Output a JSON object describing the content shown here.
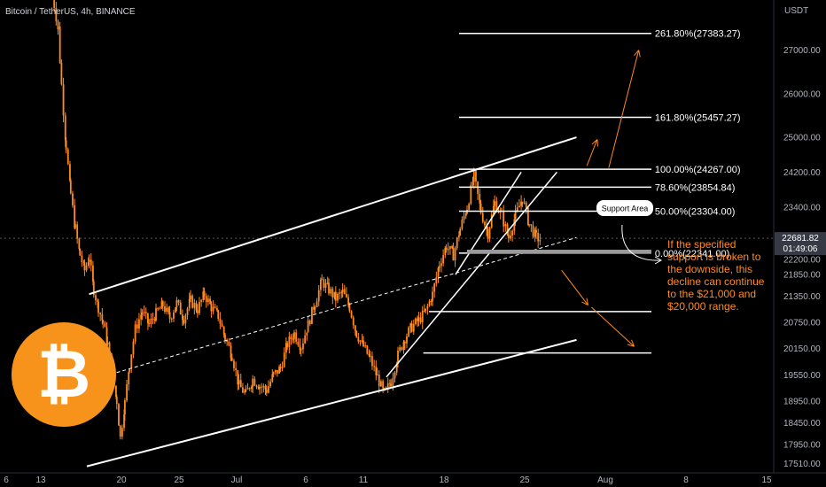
{
  "header": {
    "title": "Bitcoin / TetherUS, 4h, BINANCE"
  },
  "colors": {
    "background": "#000000",
    "candle": "#ff8a1f",
    "lines": "#ffffff",
    "annotation": "#ff8a1f",
    "bitcoin_logo": "#f7931a",
    "price_tag": "#363a45"
  },
  "chart_data": {
    "type": "candlestick",
    "symbol": "Bitcoin / TetherUS",
    "interval": "4h",
    "exchange": "BINANCE",
    "currency_label": "USDT",
    "ylim": [
      17300,
      28150
    ],
    "price_ticks": [
      27000,
      26000,
      25000,
      24200,
      23400,
      22200,
      21850,
      21350,
      20750,
      20150,
      19550,
      18950,
      18450,
      17950,
      17510
    ],
    "price_tick_labels": [
      "27000.00",
      "26000.00",
      "25000.00",
      "24200.00",
      "23400.00",
      "22200.00",
      "21850.00",
      "21350.00",
      "20750.00",
      "20150.00",
      "19550.00",
      "18950.00",
      "18450.00",
      "17950.00",
      "17510.00"
    ],
    "time_labels": [
      {
        "day": 10,
        "label": "6"
      },
      {
        "day": 13,
        "label": "13"
      },
      {
        "day": 20,
        "label": "20"
      },
      {
        "day": 25,
        "label": "25"
      },
      {
        "day": 30,
        "label": "Jul"
      },
      {
        "day": 36,
        "label": "6"
      },
      {
        "day": 41,
        "label": "11"
      },
      {
        "day": 48,
        "label": "18"
      },
      {
        "day": 55,
        "label": "25"
      },
      {
        "day": 62,
        "label": "Aug"
      },
      {
        "day": 69,
        "label": "8"
      },
      {
        "day": 76,
        "label": "15"
      }
    ],
    "current_price": "22681.82",
    "countdown": "01:49:06",
    "price_path": [
      [
        14.0,
        28300
      ],
      [
        14.5,
        27500
      ],
      [
        14.8,
        26200
      ],
      [
        15.2,
        24800
      ],
      [
        15.6,
        23700
      ],
      [
        16.0,
        22900
      ],
      [
        16.4,
        22300
      ],
      [
        16.8,
        21950
      ],
      [
        17.2,
        22250
      ],
      [
        17.6,
        21500
      ],
      [
        18.0,
        21100
      ],
      [
        18.4,
        20750
      ],
      [
        18.8,
        20250
      ],
      [
        19.2,
        19550
      ],
      [
        19.6,
        18950
      ],
      [
        19.9,
        18100
      ],
      [
        20.3,
        18900
      ],
      [
        20.7,
        19800
      ],
      [
        21.2,
        20600
      ],
      [
        21.8,
        21000
      ],
      [
        22.4,
        20700
      ],
      [
        23.0,
        20950
      ],
      [
        23.6,
        21150
      ],
      [
        24.2,
        20850
      ],
      [
        24.8,
        21200
      ],
      [
        25.4,
        20850
      ],
      [
        26.0,
        21250
      ],
      [
        26.6,
        21050
      ],
      [
        27.2,
        21400
      ],
      [
        27.8,
        21100
      ],
      [
        28.4,
        20900
      ],
      [
        29.0,
        20400
      ],
      [
        29.6,
        20000
      ],
      [
        30.2,
        19300
      ],
      [
        30.8,
        19100
      ],
      [
        31.4,
        19450
      ],
      [
        32.0,
        19300
      ],
      [
        32.6,
        19200
      ],
      [
        33.2,
        19550
      ],
      [
        33.8,
        19700
      ],
      [
        34.4,
        20250
      ],
      [
        35.0,
        20500
      ],
      [
        35.6,
        20200
      ],
      [
        36.2,
        20700
      ],
      [
        36.8,
        21200
      ],
      [
        37.4,
        21700
      ],
      [
        38.0,
        21500
      ],
      [
        38.6,
        21300
      ],
      [
        39.2,
        21450
      ],
      [
        39.8,
        21100
      ],
      [
        40.4,
        20500
      ],
      [
        41.0,
        20200
      ],
      [
        41.6,
        19900
      ],
      [
        42.2,
        19500
      ],
      [
        42.8,
        19100
      ],
      [
        43.4,
        19400
      ],
      [
        44.0,
        20000
      ],
      [
        44.6,
        20400
      ],
      [
        45.2,
        20650
      ],
      [
        45.8,
        20800
      ],
      [
        46.4,
        21000
      ],
      [
        47.0,
        21400
      ],
      [
        47.6,
        22100
      ],
      [
        48.2,
        22500
      ],
      [
        48.8,
        22300
      ],
      [
        49.4,
        22900
      ],
      [
        50.0,
        23400
      ],
      [
        50.6,
        24100
      ],
      [
        51.2,
        23300
      ],
      [
        51.8,
        22800
      ],
      [
        52.4,
        23500
      ],
      [
        53.0,
        23200
      ],
      [
        53.6,
        22700
      ],
      [
        54.2,
        23200
      ],
      [
        54.8,
        23600
      ],
      [
        55.4,
        23000
      ],
      [
        56.0,
        22700
      ],
      [
        56.4,
        22650
      ]
    ],
    "channel": {
      "upper": [
        [
          17.2,
          21400
        ],
        [
          59.5,
          25000
        ]
      ],
      "lower": [
        [
          17.0,
          17450
        ],
        [
          59.5,
          20350
        ]
      ],
      "midline_dashed": [
        [
          17.0,
          19400
        ],
        [
          59.5,
          22700
        ]
      ],
      "inner_lines": [
        [
          [
            43.0,
            19500
          ],
          [
            57.8,
            24200
          ]
        ],
        [
          [
            49.0,
            21850
          ],
          [
            54.7,
            24200
          ]
        ]
      ]
    },
    "fibonacci": {
      "x_start": 49.3,
      "x_end": 66.0,
      "label_x": 66.3,
      "levels": [
        {
          "label": "261.80%(27383.27)",
          "price": 27383.27
        },
        {
          "label": "161.80%(25457.27)",
          "price": 25457.27
        },
        {
          "label": "100.00%(24267.00)",
          "price": 24267.0
        },
        {
          "label": "78.60%(23854.84)",
          "price": 23854.84
        },
        {
          "label": "50.00%(23304.00)",
          "price": 23304.0
        },
        {
          "label": "0.00%(22341.00)",
          "price": 22341.0
        }
      ],
      "extra_lines": [
        {
          "price": 21000,
          "x_start": 46.7,
          "x_end": 66.0
        },
        {
          "price": 20050,
          "x_start": 46.2,
          "x_end": 66.0
        }
      ]
    },
    "support_area": {
      "label": "Support Area",
      "price_top": 22420,
      "price_bottom": 22330,
      "x_start": 50.0,
      "x_end": 66.0
    },
    "arrows": [
      {
        "from": [
          62.3,
          24300
        ],
        "to": [
          64.9,
          27000
        ]
      },
      {
        "from": [
          60.4,
          24350
        ],
        "to": [
          61.3,
          24950
        ]
      },
      {
        "from": [
          58.2,
          21950
        ],
        "to": [
          60.5,
          21150
        ]
      },
      {
        "from": [
          60.8,
          21100
        ],
        "to": [
          64.5,
          20200
        ]
      }
    ],
    "annotation": "If the specified support is broken to the downside, this decline can continue to the $21,000 and $20,000 range.",
    "annotation_lines": [
      "If the specified",
      "support is broken to",
      "the downside, this",
      "decline can continue",
      "to the $21,000 and",
      "$20,000 range."
    ]
  },
  "logo": {
    "symbol": "₿",
    "name": "bitcoin-logo"
  }
}
